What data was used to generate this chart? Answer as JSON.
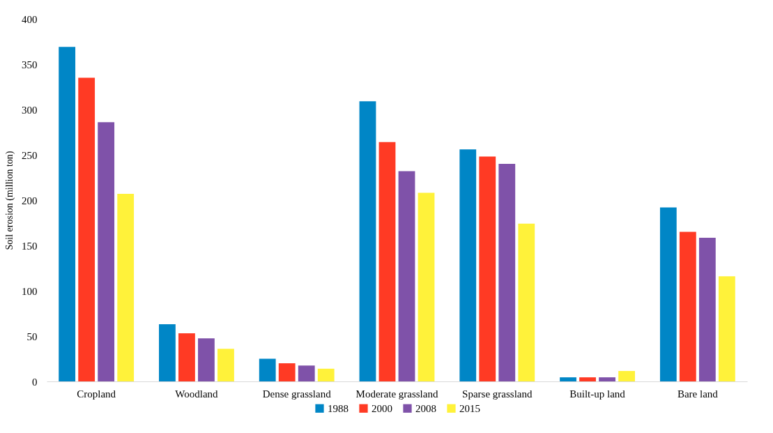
{
  "chart_data": {
    "type": "bar",
    "ylabel": "Soil erosion (million ton)",
    "categories": [
      "Cropland",
      "Woodland",
      "Dense grassland",
      "Moderate grassland",
      "Sparse grassland",
      "Built-up land",
      "Bare land"
    ],
    "series": [
      {
        "name": "1988",
        "color": "#0086c6",
        "values": [
          369,
          63,
          25,
          309,
          256,
          4.5,
          192
        ]
      },
      {
        "name": "2000",
        "color": "#ff3a24",
        "values": [
          335,
          53,
          20,
          264,
          248,
          4.5,
          165
        ]
      },
      {
        "name": "2008",
        "color": "#7f52a9",
        "values": [
          286,
          47.5,
          17.5,
          232,
          240,
          4.5,
          158.5
        ]
      },
      {
        "name": "2015",
        "color": "#fff23a",
        "values": [
          207,
          36,
          14,
          208,
          174,
          11.5,
          116
        ]
      }
    ],
    "ylim": [
      0,
      400
    ],
    "yticks": [
      0,
      50,
      100,
      150,
      200,
      250,
      300,
      350,
      400
    ],
    "grid": false,
    "legend": "bottom"
  }
}
